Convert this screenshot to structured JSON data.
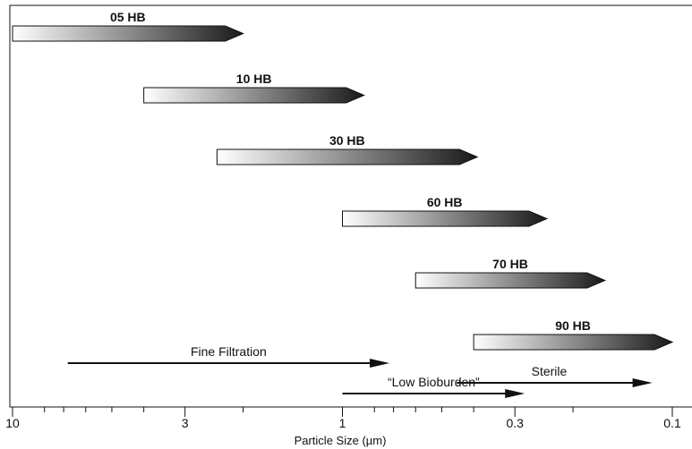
{
  "chart_data": {
    "type": "bar",
    "orientation": "horizontal-ranges",
    "x_scale": "log",
    "x_direction": "decreasing",
    "xlim": [
      10,
      0.1
    ],
    "xlabel": "Particle Size (µm)",
    "x_tick_labels": [
      {
        "value": 10,
        "label": "10"
      },
      {
        "value": 3,
        "label": "3"
      },
      {
        "value": 1,
        "label": "1"
      },
      {
        "value": 0.3,
        "label": "0.3"
      },
      {
        "value": 0.1,
        "label": "0.1"
      }
    ],
    "x_minor_ticks": [
      8,
      7,
      6,
      5,
      4,
      2,
      0.8,
      0.7,
      0.6,
      0.5,
      0.4,
      0.2
    ],
    "ranges": [
      {
        "name": "05 HB",
        "from": 10,
        "to": 2.0
      },
      {
        "name": "10 HB",
        "from": 4.0,
        "to": 0.86
      },
      {
        "name": "30 HB",
        "from": 2.4,
        "to": 0.39
      },
      {
        "name": "60 HB",
        "from": 1.0,
        "to": 0.24
      },
      {
        "name": "70 HB",
        "from": 0.6,
        "to": 0.16
      },
      {
        "name": "90 HB",
        "from": 0.4,
        "to": 0.1
      }
    ],
    "arrows": [
      {
        "name": "Fine Filtration",
        "from": 6.8,
        "to": 0.72
      },
      {
        "name": "“Low Bioburden”",
        "from": 1.0,
        "to": 0.28
      },
      {
        "name": "Sterile",
        "from": 0.45,
        "to": 0.115
      }
    ],
    "colors": {
      "gradient_start": "#ffffff",
      "gradient_end": "#1a1a1a",
      "stroke": "#111111"
    }
  }
}
